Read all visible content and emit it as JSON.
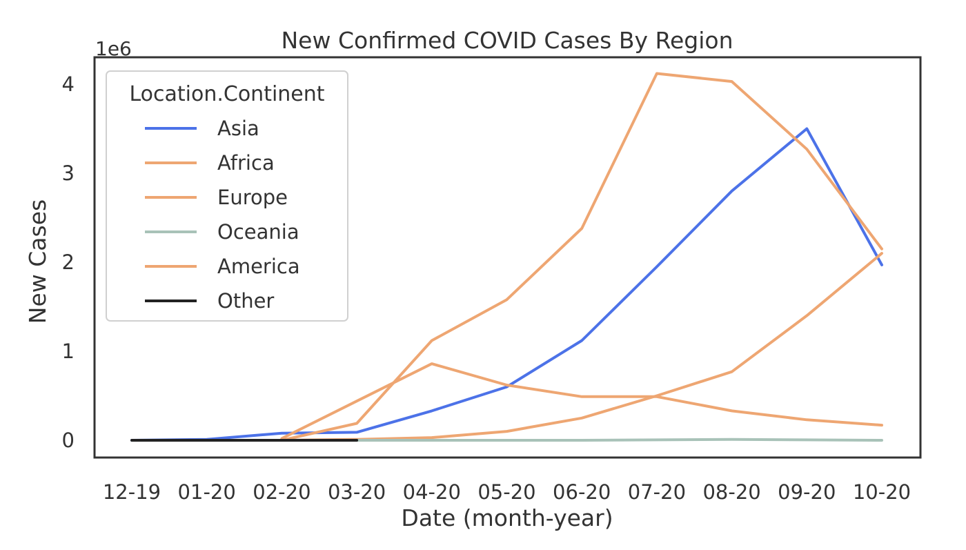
{
  "chart_data": {
    "type": "line",
    "title": "New Confirmed COVID Cases By Region",
    "xlabel": "Date (month-year)",
    "ylabel": "New Cases",
    "y_multiplier_label": "1e6",
    "categories": [
      "12-19",
      "01-20",
      "02-20",
      "03-20",
      "04-20",
      "05-20",
      "06-20",
      "07-20",
      "08-20",
      "09-20",
      "10-20"
    ],
    "yticks": [
      0,
      1,
      2,
      3,
      4
    ],
    "ylim": [
      -0.17,
      4.3
    ],
    "grid": false,
    "legend": {
      "title": "Location.Continent",
      "placement": "top-left"
    },
    "series": [
      {
        "name": "Asia",
        "color": "#4c72e8",
        "x": [
          0,
          1,
          2,
          3,
          4,
          5,
          6,
          7,
          8,
          9,
          10
        ],
        "values": [
          0.0,
          0.01,
          0.08,
          0.09,
          0.33,
          0.6,
          1.12,
          1.95,
          2.8,
          3.5,
          1.97
        ]
      },
      {
        "name": "Africa",
        "color": "#eea672",
        "x": [
          2,
          3,
          4,
          5,
          6,
          7,
          8,
          9,
          10
        ],
        "values": [
          0.0,
          0.01,
          0.03,
          0.1,
          0.25,
          0.5,
          0.77,
          1.4,
          2.1
        ]
      },
      {
        "name": "Europe",
        "color": "#eea672",
        "x": [
          2,
          3,
          4,
          5,
          6,
          7,
          8,
          9,
          10
        ],
        "values": [
          0.02,
          0.44,
          0.86,
          0.62,
          0.49,
          0.49,
          0.33,
          0.23,
          0.17
        ]
      },
      {
        "name": "Oceania",
        "color": "#a8c2b8",
        "x": [
          3,
          4,
          5,
          6,
          7,
          8,
          9,
          10
        ],
        "values": [
          0.0,
          0.0,
          0.0,
          0.0,
          0.005,
          0.01,
          0.005,
          0.0
        ]
      },
      {
        "name": "America",
        "color": "#eea672",
        "x": [
          2,
          3,
          4,
          5,
          6,
          7,
          8,
          9,
          10
        ],
        "values": [
          0.0,
          0.19,
          1.12,
          1.58,
          2.38,
          4.12,
          4.03,
          3.27,
          2.15
        ]
      },
      {
        "name": "Other",
        "color": "#222222",
        "x": [
          0,
          1,
          2,
          3
        ],
        "values": [
          0.0,
          0.0,
          0.0,
          0.0
        ]
      }
    ]
  }
}
